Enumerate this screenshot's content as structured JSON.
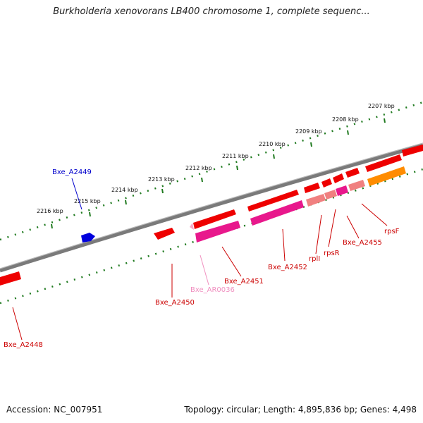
{
  "title": "Burkholderia xenovorans LB400 chromosome 1, complete sequenc...",
  "footer": {
    "accession": "Accession: NC_007951",
    "topology": "Topology: circular; Length: 4,895,836 bp; Genes: 4,498"
  },
  "ticks": [
    "2216 kbp",
    "2215 kbp",
    "2214 kbp",
    "2213 kbp",
    "2212 kbp",
    "2211 kbp",
    "2210 kbp",
    "2209 kbp",
    "2208 kbp",
    "2207 kbp"
  ],
  "genes": {
    "bxe_a2449": "Bxe_A2449",
    "bxe_a2448": "Bxe_A2448",
    "bxe_a2450": "Bxe_A2450",
    "bxe_ar0036": "Bxe_AR0036",
    "bxe_a2451": "Bxe_A2451",
    "bxe_a2452": "Bxe_A2452",
    "rpli": "rplI",
    "rpsr": "rpsR",
    "bxe_a2455": "Bxe_A2455",
    "rpsf": "rpsF"
  },
  "colors": {
    "backbone": "#7a7a7a",
    "tick": "#1f7a1f",
    "gene_forward": "#ee0000",
    "gene_selected": "#0000dd",
    "cds": "#e8188c",
    "cds_light": "#f08080",
    "rrna": "#f7a8c8",
    "orange": "#ff8c00",
    "label_red": "#cc0000",
    "label_blue": "#0000cc",
    "label_pink": "#f090c0"
  }
}
